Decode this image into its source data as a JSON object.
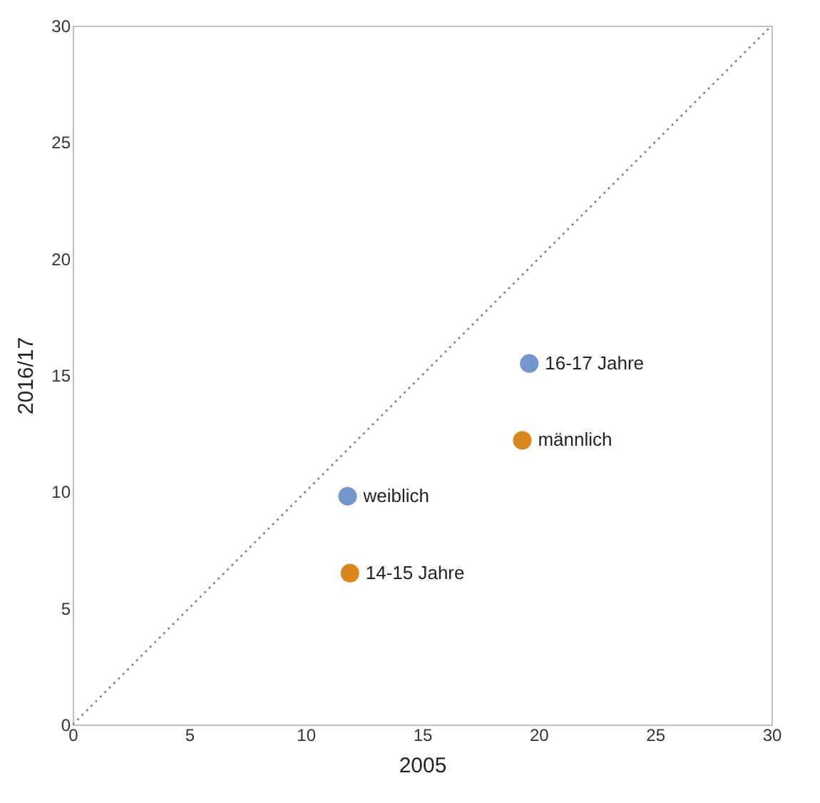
{
  "chart_data": {
    "type": "scatter",
    "xlabel": "2005",
    "ylabel": "2016/17",
    "xlim": [
      0,
      30
    ],
    "ylim": [
      0,
      30
    ],
    "xticks": [
      0,
      5,
      10,
      15,
      20,
      25,
      30
    ],
    "yticks": [
      0,
      5,
      10,
      15,
      20,
      25,
      30
    ],
    "marker": "circle",
    "series": [
      {
        "color": "#7396cd",
        "x": [
          11.8,
          19.6
        ],
        "values": [
          9.8,
          15.5
        ]
      },
      {
        "color": "#d9861c",
        "x": [
          11.9,
          19.3
        ],
        "values": [
          6.5,
          12.2
        ]
      },
      {
        "type": "line",
        "color": "#808080",
        "line_style": "dotted",
        "marker": "none",
        "x": [
          0,
          30
        ],
        "values": [
          0,
          30
        ]
      }
    ],
    "annotations": [
      {
        "text": "weiblich",
        "x": 11.8,
        "y": 9.8
      },
      {
        "text": "14-15 Jahre",
        "x": 11.9,
        "y": 6.5
      },
      {
        "text": "16-17 Jahre",
        "x": 19.6,
        "y": 15.5
      },
      {
        "text": "männlich",
        "x": 19.3,
        "y": 12.2
      }
    ]
  }
}
